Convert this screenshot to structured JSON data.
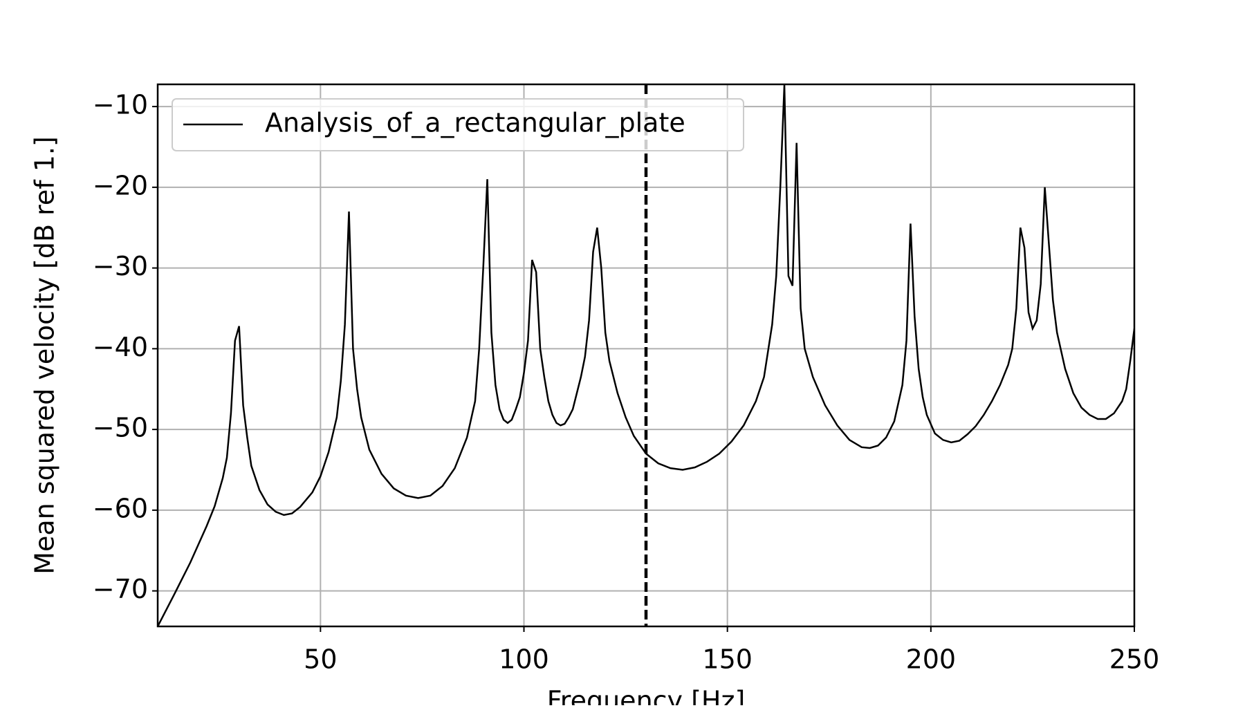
{
  "chart_data": {
    "type": "line",
    "xlabel": "Frequency [Hz]",
    "ylabel": "Mean squared velocity [dB ref 1.]",
    "x": [
      10,
      14,
      18,
      22,
      24,
      26,
      27,
      28,
      29,
      30,
      31,
      32,
      33,
      35,
      37,
      39,
      41,
      43,
      45,
      48,
      50,
      52,
      54,
      55,
      56,
      57,
      58,
      59,
      60,
      62,
      65,
      68,
      71,
      74,
      77,
      80,
      83,
      86,
      88,
      89,
      90,
      91,
      92,
      93,
      94,
      95,
      96,
      97,
      98,
      99,
      100,
      101,
      102,
      103,
      104,
      105,
      106,
      107,
      108,
      109,
      110,
      111,
      112,
      113,
      114,
      115,
      116,
      117,
      118,
      119,
      120,
      121,
      123,
      125,
      127,
      130,
      133,
      136,
      139,
      142,
      145,
      148,
      151,
      154,
      157,
      159,
      161,
      162,
      163,
      164,
      165,
      166,
      167,
      168,
      169,
      171,
      174,
      177,
      180,
      183,
      185,
      187,
      189,
      191,
      193,
      194,
      195,
      196,
      197,
      198,
      199,
      201,
      203,
      205,
      207,
      209,
      211,
      213,
      215,
      217,
      219,
      220,
      221,
      222,
      223,
      224,
      225,
      226,
      227,
      228,
      229,
      230,
      231,
      233,
      235,
      237,
      239,
      241,
      243,
      245,
      247,
      248,
      249,
      250
    ],
    "series": [
      {
        "name": "Analysis_of_a_rectangular_plate",
        "color": "#000000",
        "values": [
          -74.4,
          -70.5,
          -66.5,
          -62,
          -59.5,
          -56,
          -53.5,
          -48,
          -39,
          -37.2,
          -47,
          -51,
          -54.5,
          -57.5,
          -59.3,
          -60.2,
          -60.6,
          -60.4,
          -59.6,
          -57.8,
          -55.8,
          -52.8,
          -48.5,
          -44,
          -37,
          -23,
          -40,
          -45,
          -48.5,
          -52.5,
          -55.5,
          -57.3,
          -58.2,
          -58.5,
          -58.2,
          -57,
          -54.8,
          -51,
          -46.5,
          -40,
          -30,
          -19,
          -38,
          -44.5,
          -47.5,
          -48.8,
          -49.2,
          -48.8,
          -47.5,
          -46,
          -43,
          -39,
          -29,
          -30.5,
          -40,
          -43.5,
          -46.5,
          -48.2,
          -49.2,
          -49.5,
          -49.3,
          -48.5,
          -47.5,
          -45.5,
          -43.5,
          -41,
          -36.5,
          -28,
          -25,
          -30,
          -38,
          -41.5,
          -45.5,
          -48.5,
          -50.8,
          -53,
          -54.2,
          -54.8,
          -55,
          -54.7,
          -54,
          -53,
          -51.5,
          -49.5,
          -46.5,
          -43.5,
          -37,
          -31,
          -20,
          -7.3,
          -31,
          -32.2,
          -14.5,
          -35,
          -40,
          -43.5,
          -47,
          -49.5,
          -51.3,
          -52.2,
          -52.3,
          -52,
          -51,
          -49,
          -44.5,
          -39,
          -24.5,
          -36,
          -42.5,
          -46,
          -48.2,
          -50.5,
          -51.3,
          -51.6,
          -51.4,
          -50.6,
          -49.6,
          -48.2,
          -46.5,
          -44.5,
          -42,
          -40,
          -35,
          -25,
          -27.5,
          -35.5,
          -37.5,
          -36.5,
          -32,
          -20,
          -27,
          -34,
          -38,
          -42.5,
          -45.5,
          -47.3,
          -48.2,
          -48.7,
          -48.7,
          -48,
          -46.5,
          -45,
          -41.5,
          -37.5
        ]
      }
    ],
    "vline_x": 130,
    "xlim": [
      10,
      250
    ],
    "ylim": [
      -74.4,
      -7.25
    ],
    "xticks": [
      50,
      100,
      150,
      200,
      250
    ],
    "yticks": [
      {
        "value": -70,
        "label": "−70"
      },
      {
        "value": -60,
        "label": "−60"
      },
      {
        "value": -50,
        "label": "−50"
      },
      {
        "value": -40,
        "label": "−40"
      },
      {
        "value": -30,
        "label": "−30"
      },
      {
        "value": -20,
        "label": "−20"
      },
      {
        "value": -10,
        "label": "−10"
      }
    ],
    "grid": true,
    "legend": "upper left"
  }
}
